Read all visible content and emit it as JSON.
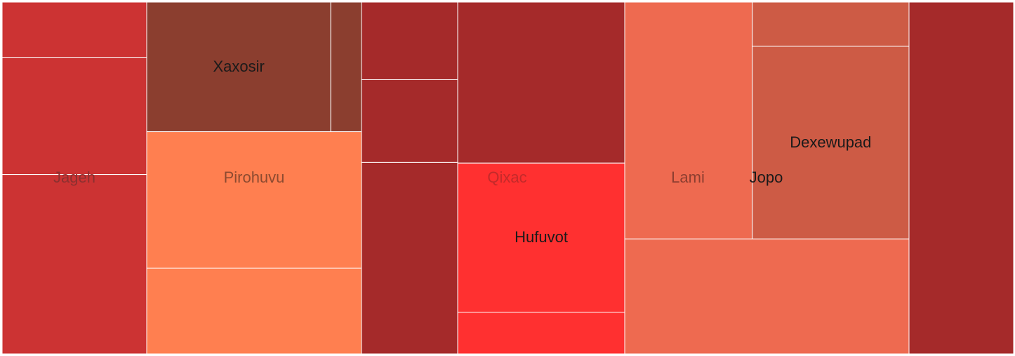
{
  "chart_data": {
    "type": "treemap",
    "title": "",
    "groups": [
      {
        "name": "Jageh",
        "color": "#cc3333",
        "label_color": "#8c3030",
        "leaves": [
          {
            "name": "",
            "value": 16
          },
          {
            "name": "",
            "value": 34
          },
          {
            "name": "",
            "value": 52
          }
        ]
      },
      {
        "name": "Pirohuvu",
        "color": "#ff7f50",
        "label_color": "#8c4a30",
        "leaves": [
          {
            "name": "Xaxosir",
            "value": 48,
            "color": "#8b3e2f",
            "label_color": "#1a1a1a"
          },
          {
            "name": "",
            "value": 8,
            "color": "#8b3e2f"
          },
          {
            "name": "",
            "value": 59
          },
          {
            "name": "",
            "value": 37
          }
        ]
      },
      {
        "name": "Qixac",
        "color": "#a52a2a",
        "label_color": "#c32a2a",
        "leaves": [
          {
            "name": "",
            "value": 15
          },
          {
            "name": "",
            "value": 16
          },
          {
            "name": "",
            "value": 37
          },
          {
            "name": "",
            "value": 54
          },
          {
            "name": "Hufuvot",
            "value": 50,
            "color": "#ff3030",
            "label_color": "#1a1a1a"
          },
          {
            "name": "",
            "value": 14,
            "color": "#ff3030"
          }
        ]
      },
      {
        "name": "Lami",
        "color": "#ee6a50",
        "label_color": "#8c3e30",
        "leaves": [
          {
            "name": "",
            "value": 61
          },
          {
            "name": "",
            "value": 66
          }
        ]
      },
      {
        "name": "Jopo",
        "color": "#cd5b45",
        "label_color": "#1a1a1a",
        "leaves": [
          {
            "name": "",
            "value": 14
          },
          {
            "name": "Dexewupad",
            "value": 61,
            "label_color": "#1a1a1a"
          }
        ]
      },
      {
        "name": "",
        "color": "#a52a2a",
        "leaves": [
          {
            "name": "",
            "value": 74
          }
        ]
      }
    ]
  }
}
